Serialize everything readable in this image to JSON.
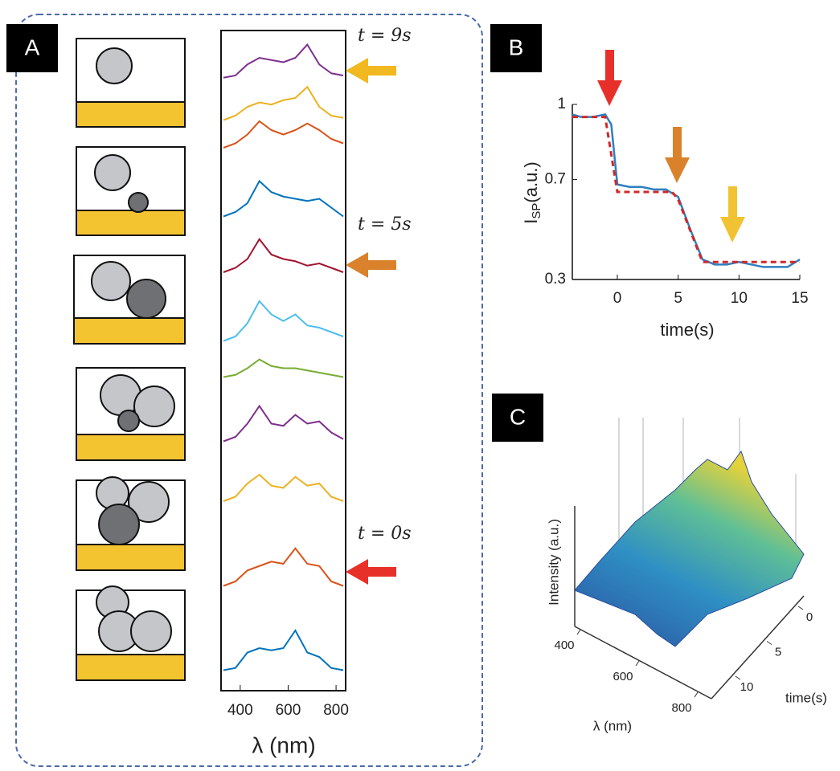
{
  "chart_data": [
    {
      "type": "line",
      "panel": "A",
      "xlabel": "λ (nm)",
      "xlim": [
        320,
        840
      ],
      "xticks": [
        400,
        600,
        800
      ],
      "x": [
        330,
        380,
        430,
        480,
        530,
        580,
        630,
        680,
        730,
        780,
        830
      ],
      "annotations": [
        "t = 9s",
        "t = 5s",
        "t = 0s"
      ],
      "series": [
        {
          "color": "#7e2f8e",
          "values": [
            0.15,
            0.2,
            0.45,
            0.6,
            0.55,
            0.5,
            0.6,
            0.9,
            0.45,
            0.25,
            0.2
          ]
        },
        {
          "color": "#edb120",
          "values": [
            0.1,
            0.2,
            0.4,
            0.5,
            0.45,
            0.55,
            0.6,
            0.85,
            0.4,
            0.2,
            0.15
          ]
        },
        {
          "color": "#d95319",
          "values": [
            0.2,
            0.3,
            0.5,
            0.8,
            0.6,
            0.5,
            0.6,
            0.75,
            0.6,
            0.4,
            0.3
          ]
        },
        {
          "color": "#0072bd",
          "values": [
            0.1,
            0.2,
            0.4,
            0.9,
            0.65,
            0.55,
            0.5,
            0.45,
            0.5,
            0.3,
            0.1
          ]
        },
        {
          "color": "#a2142f",
          "values": [
            0.2,
            0.3,
            0.5,
            0.95,
            0.6,
            0.5,
            0.45,
            0.35,
            0.4,
            0.3,
            0.2
          ]
        },
        {
          "color": "#4dbeee",
          "values": [
            0.1,
            0.2,
            0.5,
            1.0,
            0.7,
            0.55,
            0.7,
            0.45,
            0.4,
            0.3,
            0.2
          ]
        },
        {
          "color": "#77ac30",
          "values": [
            0.1,
            0.15,
            0.3,
            0.5,
            0.35,
            0.3,
            0.3,
            0.25,
            0.2,
            0.15,
            0.1
          ]
        },
        {
          "color": "#7e2f8e",
          "values": [
            0.1,
            0.2,
            0.5,
            0.9,
            0.5,
            0.45,
            0.7,
            0.5,
            0.55,
            0.3,
            0.15
          ]
        },
        {
          "color": "#edb120",
          "values": [
            0.2,
            0.3,
            0.6,
            0.8,
            0.55,
            0.5,
            0.75,
            0.55,
            0.6,
            0.3,
            0.2
          ]
        },
        {
          "color": "#d95319",
          "values": [
            0.1,
            0.2,
            0.45,
            0.55,
            0.65,
            0.6,
            0.95,
            0.6,
            0.55,
            0.2,
            0.1
          ]
        },
        {
          "color": "#0072bd",
          "values": [
            0.1,
            0.15,
            0.5,
            0.6,
            0.55,
            0.6,
            1.0,
            0.5,
            0.4,
            0.15,
            0.1
          ]
        }
      ]
    },
    {
      "type": "line",
      "panel": "B",
      "xlabel": "time(s)",
      "ylabel": "I",
      "ylabel_sub": "SP",
      "ylabel_unit": "(a.u.)",
      "xlim": [
        -3.7,
        15
      ],
      "ylim": [
        0.3,
        1
      ],
      "xticks": [
        0,
        5,
        10,
        15
      ],
      "yticks": [
        0.3,
        0.7,
        1
      ],
      "series": [
        {
          "color": "#2e7fc0",
          "dash": false,
          "x": [
            -3.7,
            -3,
            -2,
            -1,
            -0.5,
            0,
            1,
            2,
            3,
            4,
            5,
            6,
            7,
            8,
            9,
            10,
            11,
            12,
            13,
            14,
            15
          ],
          "values": [
            0.96,
            0.95,
            0.95,
            0.96,
            0.92,
            0.68,
            0.67,
            0.67,
            0.66,
            0.66,
            0.63,
            0.5,
            0.38,
            0.36,
            0.36,
            0.37,
            0.36,
            0.35,
            0.35,
            0.35,
            0.38
          ]
        },
        {
          "color": "#d0282a",
          "dash": true,
          "x": [
            -3.7,
            -1,
            0,
            4.5,
            5,
            7,
            15
          ],
          "values": [
            0.95,
            0.95,
            0.65,
            0.65,
            0.62,
            0.37,
            0.37
          ]
        }
      ]
    },
    {
      "type": "surface",
      "panel": "C",
      "xlabel": "λ (nm)",
      "ylabel": "time(s)",
      "zlabel": "Intensity (a.u.)",
      "xticks": [
        400,
        600,
        800
      ],
      "yticks": [
        0,
        5,
        10
      ]
    }
  ]
}
